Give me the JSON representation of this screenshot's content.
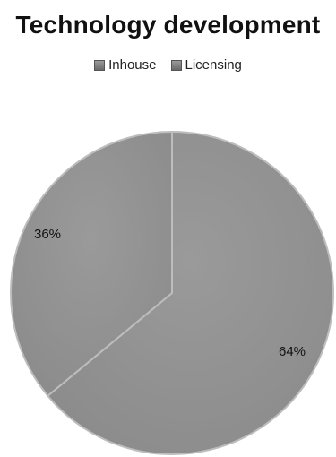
{
  "chart_data": {
    "type": "pie",
    "title": "Technology development",
    "legend": [
      "Inhouse",
      "Licensing"
    ],
    "legend_position": "top",
    "slices": [
      {
        "label": "Inhouse",
        "value": 64,
        "display": "64%"
      },
      {
        "label": "Licensing",
        "value": 36,
        "display": "36%"
      }
    ],
    "colors": {
      "slice_fill": "#8c8c8c",
      "slice_edge": "#bdbdbd"
    }
  }
}
